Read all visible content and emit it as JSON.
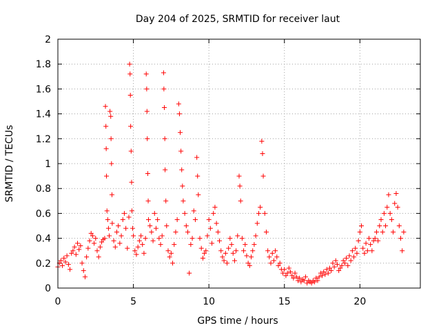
{
  "chart_data": {
    "type": "scatter",
    "title": "Day 204 of 2025, SRMTID for receiver laut",
    "xlabel": "GPS time / hours",
    "ylabel": "SRMTID / TECUs",
    "xlim": [
      0,
      24
    ],
    "ylim": [
      0,
      2
    ],
    "xticks": [
      0,
      5,
      10,
      15,
      20
    ],
    "xtick_labels": [
      "0",
      "5",
      "10",
      "15",
      "20"
    ],
    "yticks": [
      0,
      0.2,
      0.4,
      0.6,
      0.8,
      1,
      1.2,
      1.4,
      1.6,
      1.8,
      2
    ],
    "ytick_labels": [
      "0",
      "0.2",
      "0.4",
      "0.6",
      "0.8",
      "1",
      "1.2",
      "1.4",
      "1.6",
      "1.8",
      "2"
    ],
    "grid": true,
    "marker": "plus",
    "color": "#ff0000",
    "series": [
      {
        "name": "SRMTID",
        "points": [
          [
            0.0,
            0.17
          ],
          [
            0.1,
            0.2
          ],
          [
            0.2,
            0.22
          ],
          [
            0.3,
            0.18
          ],
          [
            0.4,
            0.24
          ],
          [
            0.5,
            0.21
          ],
          [
            0.6,
            0.26
          ],
          [
            0.7,
            0.19
          ],
          [
            0.8,
            0.15
          ],
          [
            0.9,
            0.28
          ],
          [
            1.0,
            0.3
          ],
          [
            1.1,
            0.33
          ],
          [
            1.2,
            0.27
          ],
          [
            1.3,
            0.36
          ],
          [
            1.4,
            0.31
          ],
          [
            1.5,
            0.34
          ],
          [
            1.6,
            0.2
          ],
          [
            1.7,
            0.14
          ],
          [
            1.8,
            0.09
          ],
          [
            1.9,
            0.25
          ],
          [
            2.0,
            0.32
          ],
          [
            2.1,
            0.38
          ],
          [
            2.2,
            0.44
          ],
          [
            2.3,
            0.42
          ],
          [
            2.4,
            0.36
          ],
          [
            2.5,
            0.4
          ],
          [
            2.6,
            0.3
          ],
          [
            2.7,
            0.25
          ],
          [
            2.8,
            0.33
          ],
          [
            2.9,
            0.37
          ],
          [
            3.0,
            0.39
          ],
          [
            3.1,
            0.4
          ],
          [
            3.15,
            1.46
          ],
          [
            3.18,
            1.3
          ],
          [
            3.2,
            1.12
          ],
          [
            3.22,
            0.9
          ],
          [
            3.25,
            0.62
          ],
          [
            3.3,
            0.55
          ],
          [
            3.35,
            0.48
          ],
          [
            3.4,
            0.42
          ],
          [
            3.45,
            1.42
          ],
          [
            3.5,
            1.38
          ],
          [
            3.52,
            1.2
          ],
          [
            3.55,
            1.0
          ],
          [
            3.58,
            0.75
          ],
          [
            3.6,
            0.52
          ],
          [
            3.7,
            0.38
          ],
          [
            3.8,
            0.33
          ],
          [
            3.9,
            0.45
          ],
          [
            4.0,
            0.5
          ],
          [
            4.1,
            0.36
          ],
          [
            4.2,
            0.42
          ],
          [
            4.3,
            0.55
          ],
          [
            4.4,
            0.6
          ],
          [
            4.5,
            0.48
          ],
          [
            4.6,
            0.32
          ],
          [
            4.7,
            0.57
          ],
          [
            4.75,
            1.8
          ],
          [
            4.78,
            1.72
          ],
          [
            4.8,
            1.55
          ],
          [
            4.82,
            1.3
          ],
          [
            4.85,
            1.1
          ],
          [
            4.88,
            0.85
          ],
          [
            4.9,
            0.62
          ],
          [
            4.95,
            0.48
          ],
          [
            5.0,
            0.42
          ],
          [
            5.1,
            0.3
          ],
          [
            5.2,
            0.27
          ],
          [
            5.3,
            0.33
          ],
          [
            5.4,
            0.38
          ],
          [
            5.5,
            0.42
          ],
          [
            5.6,
            0.35
          ],
          [
            5.7,
            0.28
          ],
          [
            5.8,
            0.4
          ],
          [
            5.85,
            1.72
          ],
          [
            5.88,
            1.6
          ],
          [
            5.9,
            1.42
          ],
          [
            5.92,
            1.2
          ],
          [
            5.95,
            0.92
          ],
          [
            5.98,
            0.7
          ],
          [
            6.0,
            0.55
          ],
          [
            6.1,
            0.5
          ],
          [
            6.2,
            0.45
          ],
          [
            6.3,
            0.38
          ],
          [
            6.4,
            0.6
          ],
          [
            6.5,
            0.48
          ],
          [
            6.6,
            0.55
          ],
          [
            6.7,
            0.4
          ],
          [
            6.8,
            0.35
          ],
          [
            6.9,
            0.42
          ],
          [
            7.0,
            1.73
          ],
          [
            7.02,
            1.6
          ],
          [
            7.05,
            1.45
          ],
          [
            7.08,
            1.2
          ],
          [
            7.1,
            0.95
          ],
          [
            7.15,
            0.7
          ],
          [
            7.2,
            0.5
          ],
          [
            7.3,
            0.3
          ],
          [
            7.4,
            0.25
          ],
          [
            7.5,
            0.28
          ],
          [
            7.6,
            0.2
          ],
          [
            7.7,
            0.35
          ],
          [
            7.8,
            0.45
          ],
          [
            7.9,
            0.55
          ],
          [
            8.0,
            1.48
          ],
          [
            8.05,
            1.4
          ],
          [
            8.1,
            1.25
          ],
          [
            8.15,
            1.1
          ],
          [
            8.2,
            0.95
          ],
          [
            8.25,
            0.82
          ],
          [
            8.3,
            0.7
          ],
          [
            8.4,
            0.6
          ],
          [
            8.5,
            0.5
          ],
          [
            8.6,
            0.45
          ],
          [
            8.7,
            0.12
          ],
          [
            8.8,
            0.35
          ],
          [
            8.9,
            0.4
          ],
          [
            9.0,
            0.62
          ],
          [
            9.1,
            0.55
          ],
          [
            9.2,
            1.05
          ],
          [
            9.25,
            0.9
          ],
          [
            9.3,
            0.75
          ],
          [
            9.4,
            0.4
          ],
          [
            9.5,
            0.32
          ],
          [
            9.6,
            0.24
          ],
          [
            9.7,
            0.28
          ],
          [
            9.8,
            0.3
          ],
          [
            9.9,
            0.42
          ],
          [
            10.0,
            0.55
          ],
          [
            10.1,
            0.48
          ],
          [
            10.2,
            0.36
          ],
          [
            10.3,
            0.6
          ],
          [
            10.4,
            0.65
          ],
          [
            10.5,
            0.52
          ],
          [
            10.6,
            0.45
          ],
          [
            10.7,
            0.38
          ],
          [
            10.8,
            0.3
          ],
          [
            10.9,
            0.25
          ],
          [
            11.0,
            0.22
          ],
          [
            11.1,
            0.28
          ],
          [
            11.2,
            0.2
          ],
          [
            11.3,
            0.32
          ],
          [
            11.4,
            0.4
          ],
          [
            11.5,
            0.35
          ],
          [
            11.6,
            0.28
          ],
          [
            11.7,
            0.22
          ],
          [
            11.8,
            0.3
          ],
          [
            11.9,
            0.42
          ],
          [
            12.0,
            0.9
          ],
          [
            12.05,
            0.82
          ],
          [
            12.1,
            0.7
          ],
          [
            12.2,
            0.4
          ],
          [
            12.3,
            0.3
          ],
          [
            12.4,
            0.35
          ],
          [
            12.5,
            0.26
          ],
          [
            12.6,
            0.2
          ],
          [
            12.7,
            0.18
          ],
          [
            12.8,
            0.25
          ],
          [
            12.9,
            0.3
          ],
          [
            13.0,
            0.35
          ],
          [
            13.1,
            0.42
          ],
          [
            13.2,
            0.52
          ],
          [
            13.3,
            0.6
          ],
          [
            13.4,
            0.65
          ],
          [
            13.5,
            1.18
          ],
          [
            13.55,
            1.08
          ],
          [
            13.6,
            0.9
          ],
          [
            13.7,
            0.6
          ],
          [
            13.8,
            0.45
          ],
          [
            13.9,
            0.3
          ],
          [
            14.0,
            0.25
          ],
          [
            14.1,
            0.2
          ],
          [
            14.2,
            0.28
          ],
          [
            14.3,
            0.22
          ],
          [
            14.4,
            0.3
          ],
          [
            14.5,
            0.25
          ],
          [
            14.6,
            0.18
          ],
          [
            14.7,
            0.2
          ],
          [
            14.8,
            0.15
          ],
          [
            14.9,
            0.12
          ],
          [
            15.0,
            0.15
          ],
          [
            15.1,
            0.1
          ],
          [
            15.2,
            0.12
          ],
          [
            15.3,
            0.16
          ],
          [
            15.4,
            0.13
          ],
          [
            15.5,
            0.1
          ],
          [
            15.6,
            0.08
          ],
          [
            15.7,
            0.12
          ],
          [
            15.8,
            0.09
          ],
          [
            15.9,
            0.06
          ],
          [
            16.0,
            0.08
          ],
          [
            16.1,
            0.05
          ],
          [
            16.2,
            0.07
          ],
          [
            16.3,
            0.06
          ],
          [
            16.4,
            0.09
          ],
          [
            16.5,
            0.04
          ],
          [
            16.6,
            0.06
          ],
          [
            16.7,
            0.05
          ],
          [
            16.8,
            0.04
          ],
          [
            16.9,
            0.06
          ],
          [
            17.0,
            0.05
          ],
          [
            17.1,
            0.08
          ],
          [
            17.2,
            0.06
          ],
          [
            17.3,
            0.09
          ],
          [
            17.4,
            0.12
          ],
          [
            17.5,
            0.1
          ],
          [
            17.6,
            0.13
          ],
          [
            17.7,
            0.11
          ],
          [
            17.8,
            0.15
          ],
          [
            17.9,
            0.12
          ],
          [
            18.0,
            0.16
          ],
          [
            18.1,
            0.14
          ],
          [
            18.2,
            0.2
          ],
          [
            18.3,
            0.17
          ],
          [
            18.4,
            0.22
          ],
          [
            18.5,
            0.19
          ],
          [
            18.6,
            0.14
          ],
          [
            18.7,
            0.16
          ],
          [
            18.8,
            0.18
          ],
          [
            18.9,
            0.22
          ],
          [
            19.0,
            0.2
          ],
          [
            19.1,
            0.24
          ],
          [
            19.2,
            0.18
          ],
          [
            19.3,
            0.26
          ],
          [
            19.4,
            0.22
          ],
          [
            19.5,
            0.3
          ],
          [
            19.6,
            0.25
          ],
          [
            19.7,
            0.32
          ],
          [
            19.8,
            0.28
          ],
          [
            19.9,
            0.38
          ],
          [
            20.0,
            0.45
          ],
          [
            20.1,
            0.5
          ],
          [
            20.2,
            0.32
          ],
          [
            20.3,
            0.28
          ],
          [
            20.4,
            0.36
          ],
          [
            20.5,
            0.3
          ],
          [
            20.6,
            0.4
          ],
          [
            20.7,
            0.35
          ],
          [
            20.8,
            0.3
          ],
          [
            20.9,
            0.38
          ],
          [
            21.0,
            0.4
          ],
          [
            21.1,
            0.45
          ],
          [
            21.2,
            0.38
          ],
          [
            21.3,
            0.5
          ],
          [
            21.4,
            0.55
          ],
          [
            21.5,
            0.45
          ],
          [
            21.6,
            0.6
          ],
          [
            21.7,
            0.5
          ],
          [
            21.8,
            0.65
          ],
          [
            21.9,
            0.75
          ],
          [
            22.0,
            0.6
          ],
          [
            22.1,
            0.55
          ],
          [
            22.2,
            0.45
          ],
          [
            22.3,
            0.68
          ],
          [
            22.4,
            0.76
          ],
          [
            22.5,
            0.65
          ],
          [
            22.6,
            0.5
          ],
          [
            22.7,
            0.4
          ],
          [
            22.8,
            0.3
          ],
          [
            22.9,
            0.45
          ]
        ]
      }
    ]
  }
}
